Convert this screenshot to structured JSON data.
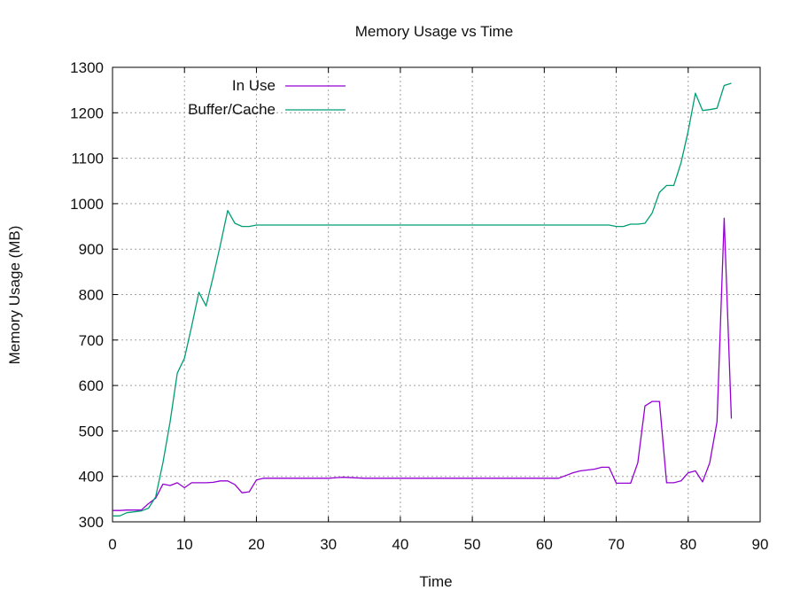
{
  "chart_data": {
    "type": "line",
    "title": "Memory Usage vs Time",
    "xlabel": "Time",
    "ylabel": "Memory Usage (MB)",
    "xlim": [
      0,
      90
    ],
    "ylim": [
      300,
      1300
    ],
    "xticks": [
      0,
      10,
      20,
      30,
      40,
      50,
      60,
      70,
      80,
      90
    ],
    "yticks": [
      300,
      400,
      500,
      600,
      700,
      800,
      900,
      1000,
      1100,
      1200,
      1300
    ],
    "grid": true,
    "legend_position": "top-left",
    "series": [
      {
        "name": "In Use",
        "color": "#9400d3",
        "points": [
          [
            0,
            325
          ],
          [
            1,
            325
          ],
          [
            2,
            326
          ],
          [
            3,
            326
          ],
          [
            4,
            326
          ],
          [
            5,
            340
          ],
          [
            6,
            352
          ],
          [
            7,
            383
          ],
          [
            8,
            380
          ],
          [
            9,
            386
          ],
          [
            10,
            375
          ],
          [
            11,
            386
          ],
          [
            12,
            386
          ],
          [
            13,
            386
          ],
          [
            14,
            387
          ],
          [
            15,
            390
          ],
          [
            16,
            390
          ],
          [
            17,
            382
          ],
          [
            18,
            364
          ],
          [
            19,
            366
          ],
          [
            20,
            392
          ],
          [
            21,
            396
          ],
          [
            25,
            396
          ],
          [
            30,
            396
          ],
          [
            32,
            398
          ],
          [
            35,
            396
          ],
          [
            40,
            396
          ],
          [
            45,
            396
          ],
          [
            50,
            396
          ],
          [
            55,
            396
          ],
          [
            60,
            396
          ],
          [
            62,
            396
          ],
          [
            63,
            402
          ],
          [
            64,
            408
          ],
          [
            65,
            412
          ],
          [
            66,
            414
          ],
          [
            67,
            416
          ],
          [
            68,
            420
          ],
          [
            69,
            420
          ],
          [
            70,
            385
          ],
          [
            71,
            385
          ],
          [
            72,
            385
          ],
          [
            73,
            430
          ],
          [
            74,
            555
          ],
          [
            75,
            565
          ],
          [
            76,
            565
          ],
          [
            77,
            386
          ],
          [
            78,
            386
          ],
          [
            79,
            390
          ],
          [
            80,
            408
          ],
          [
            81,
            412
          ],
          [
            82,
            388
          ],
          [
            83,
            430
          ],
          [
            84,
            520
          ],
          [
            85,
            968
          ],
          [
            86,
            527
          ]
        ]
      },
      {
        "name": "Buffer/Cache",
        "color": "#009e73",
        "points": [
          [
            0,
            313
          ],
          [
            1,
            313
          ],
          [
            2,
            320
          ],
          [
            3,
            322
          ],
          [
            4,
            324
          ],
          [
            5,
            330
          ],
          [
            6,
            355
          ],
          [
            7,
            430
          ],
          [
            8,
            520
          ],
          [
            9,
            627
          ],
          [
            10,
            660
          ],
          [
            11,
            730
          ],
          [
            12,
            805
          ],
          [
            13,
            775
          ],
          [
            14,
            840
          ],
          [
            15,
            910
          ],
          [
            16,
            985
          ],
          [
            17,
            957
          ],
          [
            18,
            950
          ],
          [
            19,
            950
          ],
          [
            20,
            953
          ],
          [
            25,
            953
          ],
          [
            30,
            953
          ],
          [
            40,
            953
          ],
          [
            50,
            953
          ],
          [
            60,
            953
          ],
          [
            69,
            953
          ],
          [
            70,
            950
          ],
          [
            71,
            950
          ],
          [
            72,
            955
          ],
          [
            73,
            955
          ],
          [
            74,
            957
          ],
          [
            75,
            980
          ],
          [
            76,
            1025
          ],
          [
            77,
            1040
          ],
          [
            78,
            1040
          ],
          [
            79,
            1090
          ],
          [
            80,
            1160
          ],
          [
            81,
            1243
          ],
          [
            82,
            1205
          ],
          [
            83,
            1207
          ],
          [
            84,
            1210
          ],
          [
            85,
            1260
          ],
          [
            86,
            1265
          ]
        ]
      }
    ]
  }
}
